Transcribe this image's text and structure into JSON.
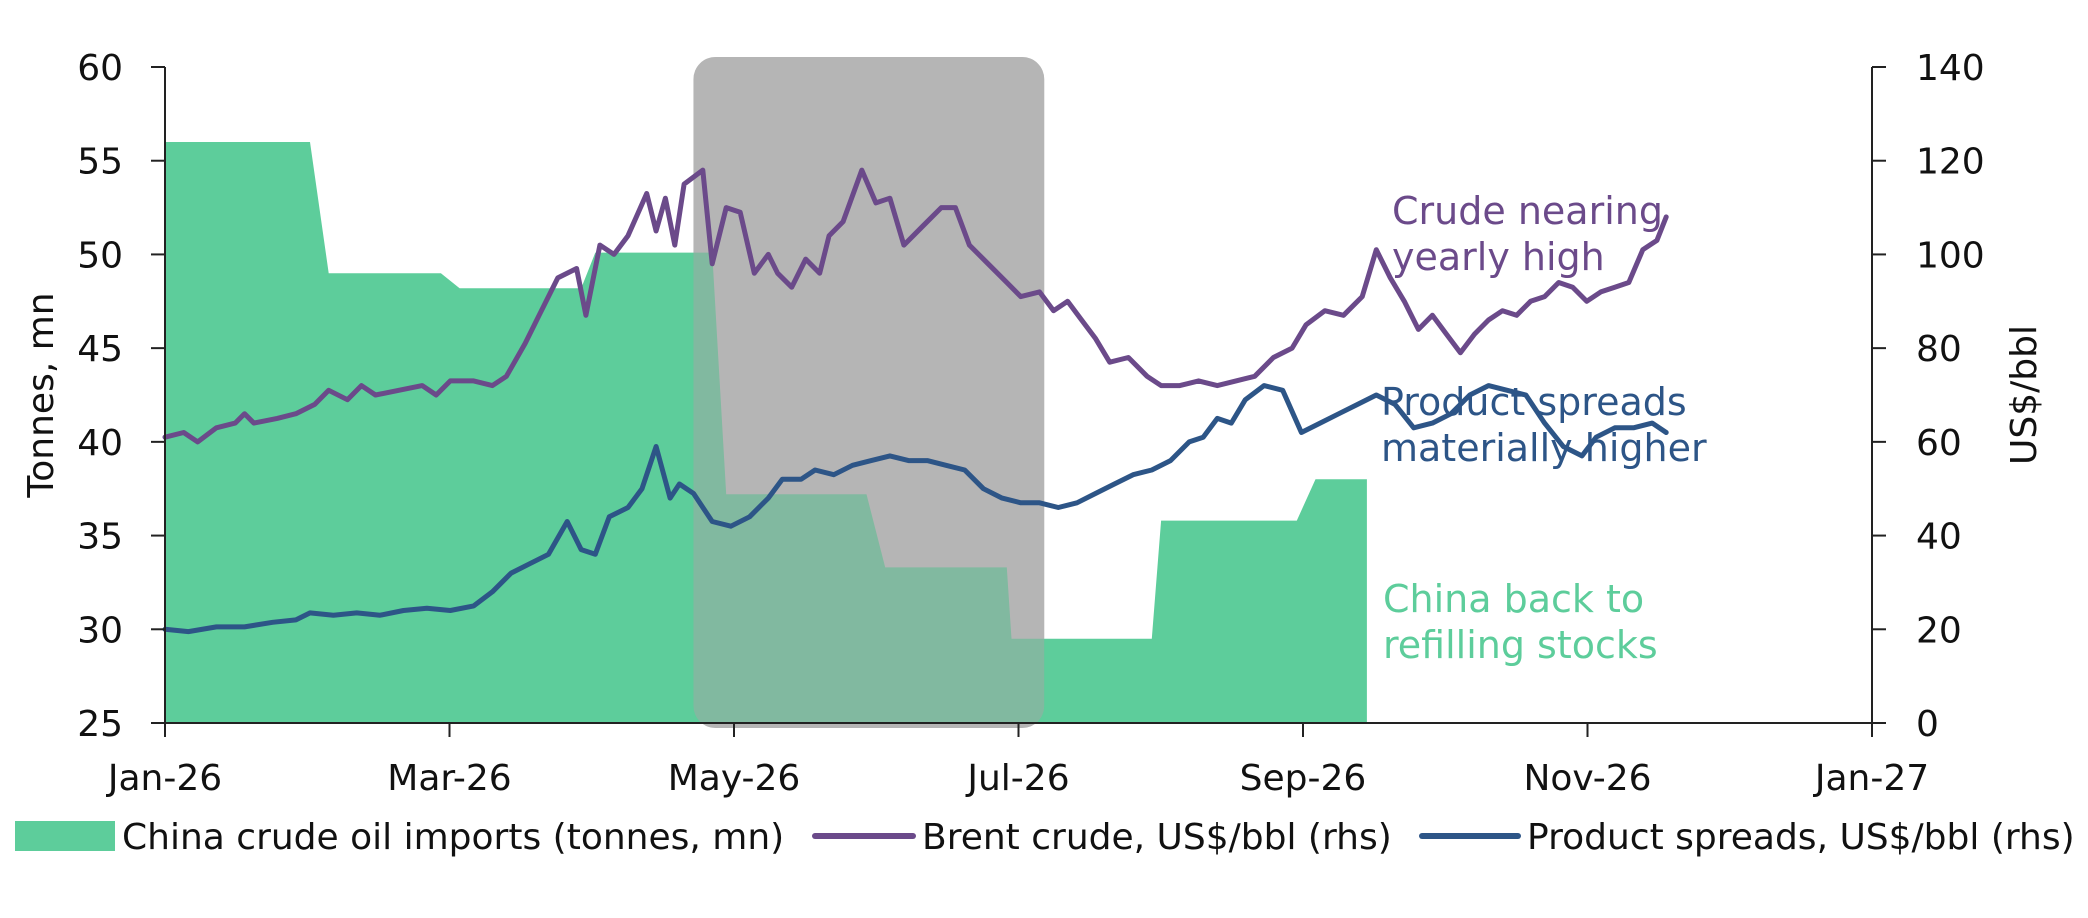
{
  "colors": {
    "imports": "#5dcd9b",
    "brent": "#6b4a8a",
    "spreads": "#2d5587",
    "highlight": "#a6a6a6",
    "axis": "#222222"
  },
  "chart_data": {
    "type": "area+line",
    "x_axis": {
      "ticks": [
        "Jan-26",
        "Mar-26",
        "May-26",
        "Jul-26",
        "Sep-26",
        "Nov-26",
        "Jan-27"
      ],
      "range": [
        "2026-01-01",
        "2027-01-01"
      ]
    },
    "y_left": {
      "label": "Tonnes, mn",
      "range": [
        25,
        60
      ],
      "ticks": [
        "25",
        "30",
        "35",
        "40",
        "45",
        "50",
        "55",
        "60"
      ]
    },
    "y_right": {
      "label": "US$/bbl",
      "range": [
        0,
        140
      ],
      "ticks": [
        "0",
        "20",
        "40",
        "60",
        "80",
        "100",
        "120",
        "140"
      ]
    },
    "highlight_period": [
      "2026-04-24",
      "2026-07-08"
    ],
    "series": [
      {
        "name": "China crude oil imports (tonnes, mn)",
        "type": "area",
        "axis": "left",
        "points": [
          [
            "2026-01-01",
            56.0
          ],
          [
            "2026-02-01",
            56.0
          ],
          [
            "2026-02-05",
            49.0
          ],
          [
            "2026-03-01",
            49.0
          ],
          [
            "2026-03-05",
            48.2
          ],
          [
            "2026-03-31",
            48.2
          ],
          [
            "2026-04-03",
            50.1
          ],
          [
            "2026-04-28",
            50.1
          ],
          [
            "2026-05-01",
            37.2
          ],
          [
            "2026-05-31",
            37.2
          ],
          [
            "2026-06-04",
            33.3
          ],
          [
            "2026-06-30",
            33.3
          ],
          [
            "2026-07-01",
            29.5
          ],
          [
            "2026-07-31",
            29.5
          ],
          [
            "2026-08-02",
            35.8
          ],
          [
            "2026-08-31",
            35.8
          ],
          [
            "2026-09-04",
            38.0
          ],
          [
            "2026-09-15",
            38.0
          ]
        ]
      },
      {
        "name": "Brent crude, US$/bbl (rhs)",
        "type": "line",
        "axis": "right",
        "points": [
          [
            "2026-01-01",
            61
          ],
          [
            "2026-01-05",
            62
          ],
          [
            "2026-01-08",
            60
          ],
          [
            "2026-01-12",
            63
          ],
          [
            "2026-01-16",
            64
          ],
          [
            "2026-01-18",
            66
          ],
          [
            "2026-01-20",
            64
          ],
          [
            "2026-01-25",
            65
          ],
          [
            "2026-01-29",
            66
          ],
          [
            "2026-02-02",
            68
          ],
          [
            "2026-02-05",
            71
          ],
          [
            "2026-02-09",
            69
          ],
          [
            "2026-02-12",
            72
          ],
          [
            "2026-02-15",
            70
          ],
          [
            "2026-02-20",
            71
          ],
          [
            "2026-02-25",
            72
          ],
          [
            "2026-02-28",
            70
          ],
          [
            "2026-03-03",
            73
          ],
          [
            "2026-03-08",
            73
          ],
          [
            "2026-03-12",
            72
          ],
          [
            "2026-03-15",
            74
          ],
          [
            "2026-03-19",
            81
          ],
          [
            "2026-03-22",
            87
          ],
          [
            "2026-03-26",
            95
          ],
          [
            "2026-03-30",
            97
          ],
          [
            "2026-04-01",
            87
          ],
          [
            "2026-04-04",
            102
          ],
          [
            "2026-04-07",
            100
          ],
          [
            "2026-04-10",
            104
          ],
          [
            "2026-04-14",
            113
          ],
          [
            "2026-04-16",
            105
          ],
          [
            "2026-04-18",
            112
          ],
          [
            "2026-04-20",
            102
          ],
          [
            "2026-04-22",
            115
          ],
          [
            "2026-04-26",
            118
          ],
          [
            "2026-04-28",
            98
          ],
          [
            "2026-05-01",
            110
          ],
          [
            "2026-05-04",
            109
          ],
          [
            "2026-05-07",
            96
          ],
          [
            "2026-05-10",
            100
          ],
          [
            "2026-05-12",
            96
          ],
          [
            "2026-05-15",
            93
          ],
          [
            "2026-05-18",
            99
          ],
          [
            "2026-05-21",
            96
          ],
          [
            "2026-05-23",
            104
          ],
          [
            "2026-05-26",
            107
          ],
          [
            "2026-05-30",
            118
          ],
          [
            "2026-06-02",
            111
          ],
          [
            "2026-06-05",
            112
          ],
          [
            "2026-06-08",
            102
          ],
          [
            "2026-06-12",
            106
          ],
          [
            "2026-06-16",
            110
          ],
          [
            "2026-06-19",
            110
          ],
          [
            "2026-06-22",
            102
          ],
          [
            "2026-06-26",
            98
          ],
          [
            "2026-06-30",
            94
          ],
          [
            "2026-07-03",
            91
          ],
          [
            "2026-07-07",
            92
          ],
          [
            "2026-07-10",
            88
          ],
          [
            "2026-07-13",
            90
          ],
          [
            "2026-07-16",
            86
          ],
          [
            "2026-07-19",
            82
          ],
          [
            "2026-07-22",
            77
          ],
          [
            "2026-07-26",
            78
          ],
          [
            "2026-07-30",
            74
          ],
          [
            "2026-08-02",
            72
          ],
          [
            "2026-08-06",
            72
          ],
          [
            "2026-08-10",
            73
          ],
          [
            "2026-08-14",
            72
          ],
          [
            "2026-08-18",
            73
          ],
          [
            "2026-08-22",
            74
          ],
          [
            "2026-08-26",
            78
          ],
          [
            "2026-08-30",
            80
          ],
          [
            "2026-09-02",
            85
          ],
          [
            "2026-09-06",
            88
          ],
          [
            "2026-09-10",
            87
          ],
          [
            "2026-09-14",
            91
          ],
          [
            "2026-09-17",
            101
          ],
          [
            "2026-09-20",
            95
          ],
          [
            "2026-09-23",
            90
          ],
          [
            "2026-09-26",
            84
          ],
          [
            "2026-09-29",
            87
          ],
          [
            "2026-10-02",
            83
          ],
          [
            "2026-10-05",
            79
          ],
          [
            "2026-10-08",
            83
          ],
          [
            "2026-10-11",
            86
          ],
          [
            "2026-10-14",
            88
          ],
          [
            "2026-10-17",
            87
          ],
          [
            "2026-10-20",
            90
          ],
          [
            "2026-10-23",
            91
          ],
          [
            "2026-10-26",
            94
          ],
          [
            "2026-10-29",
            93
          ],
          [
            "2026-11-01",
            90
          ],
          [
            "2026-11-04",
            92
          ],
          [
            "2026-11-07",
            93
          ],
          [
            "2026-11-10",
            94
          ],
          [
            "2026-11-13",
            101
          ],
          [
            "2026-11-16",
            103
          ],
          [
            "2026-11-18",
            108
          ]
        ]
      },
      {
        "name": "Product spreads, US$/bbl (rhs)",
        "type": "line",
        "axis": "right",
        "points": [
          [
            "2026-01-01",
            20
          ],
          [
            "2026-01-06",
            19.5
          ],
          [
            "2026-01-12",
            20.5
          ],
          [
            "2026-01-18",
            20.5
          ],
          [
            "2026-01-24",
            21.5
          ],
          [
            "2026-01-29",
            22
          ],
          [
            "2026-02-01",
            23.5
          ],
          [
            "2026-02-06",
            23
          ],
          [
            "2026-02-11",
            23.5
          ],
          [
            "2026-02-16",
            23
          ],
          [
            "2026-02-21",
            24
          ],
          [
            "2026-02-26",
            24.5
          ],
          [
            "2026-03-03",
            24
          ],
          [
            "2026-03-08",
            25
          ],
          [
            "2026-03-12",
            28
          ],
          [
            "2026-03-16",
            32
          ],
          [
            "2026-03-20",
            34
          ],
          [
            "2026-03-24",
            36
          ],
          [
            "2026-03-28",
            43
          ],
          [
            "2026-03-31",
            37
          ],
          [
            "2026-04-03",
            36
          ],
          [
            "2026-04-06",
            44
          ],
          [
            "2026-04-10",
            46
          ],
          [
            "2026-04-13",
            50
          ],
          [
            "2026-04-16",
            59
          ],
          [
            "2026-04-19",
            48
          ],
          [
            "2026-04-21",
            51
          ],
          [
            "2026-04-24",
            49
          ],
          [
            "2026-04-28",
            43
          ],
          [
            "2026-05-02",
            42
          ],
          [
            "2026-05-06",
            44
          ],
          [
            "2026-05-10",
            48
          ],
          [
            "2026-05-13",
            52
          ],
          [
            "2026-05-17",
            52
          ],
          [
            "2026-05-20",
            54
          ],
          [
            "2026-05-24",
            53
          ],
          [
            "2026-05-28",
            55
          ],
          [
            "2026-06-01",
            56
          ],
          [
            "2026-06-05",
            57
          ],
          [
            "2026-06-09",
            56
          ],
          [
            "2026-06-13",
            56
          ],
          [
            "2026-06-17",
            55
          ],
          [
            "2026-06-21",
            54
          ],
          [
            "2026-06-25",
            50
          ],
          [
            "2026-06-29",
            48
          ],
          [
            "2026-07-03",
            47
          ],
          [
            "2026-07-07",
            47
          ],
          [
            "2026-07-11",
            46
          ],
          [
            "2026-07-15",
            47
          ],
          [
            "2026-07-19",
            49
          ],
          [
            "2026-07-23",
            51
          ],
          [
            "2026-07-27",
            53
          ],
          [
            "2026-07-31",
            54
          ],
          [
            "2026-08-04",
            56
          ],
          [
            "2026-08-08",
            60
          ],
          [
            "2026-08-11",
            61
          ],
          [
            "2026-08-14",
            65
          ],
          [
            "2026-08-17",
            64
          ],
          [
            "2026-08-20",
            69
          ],
          [
            "2026-08-24",
            72
          ],
          [
            "2026-08-28",
            71
          ],
          [
            "2026-09-01",
            62
          ],
          [
            "2026-09-05",
            64
          ],
          [
            "2026-09-09",
            66
          ],
          [
            "2026-09-13",
            68
          ],
          [
            "2026-09-17",
            70
          ],
          [
            "2026-09-21",
            68
          ],
          [
            "2026-09-25",
            63
          ],
          [
            "2026-09-29",
            64
          ],
          [
            "2026-10-03",
            66
          ],
          [
            "2026-10-07",
            70
          ],
          [
            "2026-10-11",
            72
          ],
          [
            "2026-10-15",
            71
          ],
          [
            "2026-10-19",
            70
          ],
          [
            "2026-10-23",
            64
          ],
          [
            "2026-10-27",
            59
          ],
          [
            "2026-10-31",
            57
          ],
          [
            "2026-11-03",
            61
          ],
          [
            "2026-11-07",
            63
          ],
          [
            "2026-11-11",
            63
          ],
          [
            "2026-11-15",
            64
          ],
          [
            "2026-11-18",
            62
          ]
        ]
      }
    ],
    "annotations": [
      {
        "lines": [
          "Crude nearing",
          "yearly high"
        ],
        "color_key": "brent"
      },
      {
        "lines": [
          "Product spreads",
          "materially higher"
        ],
        "color_key": "spreads"
      },
      {
        "lines": [
          "China back to",
          "refilling stocks"
        ],
        "color_key": "imports"
      }
    ],
    "legend": {
      "position": "bottom",
      "items": [
        {
          "label": "China crude oil imports (tonnes, mn)",
          "symbol": "box",
          "color_key": "imports"
        },
        {
          "label": "Brent crude, US$/bbl (rhs)",
          "symbol": "line",
          "color_key": "brent"
        },
        {
          "label": "Product spreads, US$/bbl (rhs)",
          "symbol": "line",
          "color_key": "spreads"
        }
      ]
    }
  }
}
